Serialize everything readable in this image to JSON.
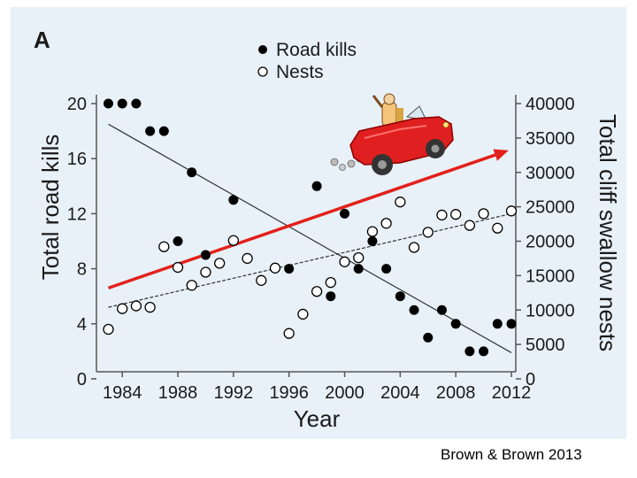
{
  "panel_label": "A",
  "citation": "Brown & Brown 2013",
  "illustration": "car-driver-illustration",
  "chart_data": {
    "type": "scatter",
    "xlabel": "Year",
    "ylabel_left": "Total road kills",
    "ylabel_right": "Total cliff swallow nests",
    "xlim": [
      1982.5,
      2013
    ],
    "ylim_left": [
      0,
      20
    ],
    "ylim_right": [
      0,
      40000
    ],
    "x_ticks": [
      "1984",
      "1988",
      "1992",
      "1996",
      "2000",
      "2004",
      "2008",
      "2012"
    ],
    "y_ticks_left": [
      "0",
      "4",
      "8",
      "12",
      "16",
      "20"
    ],
    "y_ticks_right": [
      "0",
      "5000",
      "10000",
      "15000",
      "20000",
      "25000",
      "30000",
      "35000",
      "40000"
    ],
    "legend": {
      "position": "top-center",
      "entries": [
        "Road kills",
        "Nests"
      ]
    },
    "series": [
      {
        "name": "Road kills",
        "axis": "left",
        "marker": "filled",
        "x": [
          1983,
          1984,
          1985,
          1986,
          1987,
          1988,
          1989,
          1990,
          1992,
          1996,
          1998,
          1999,
          2000,
          2001,
          2002,
          2003,
          2004,
          2005,
          2006,
          2007,
          2008,
          2009,
          2010,
          2011,
          2012
        ],
        "values": [
          20,
          20,
          20,
          18,
          18,
          10,
          15,
          9,
          13,
          8,
          14,
          6,
          12,
          8,
          10,
          8,
          6,
          5,
          3,
          5,
          4,
          2,
          2,
          4,
          4
        ]
      },
      {
        "name": "Nests",
        "axis": "right",
        "marker": "open",
        "x": [
          1983,
          1984,
          1985,
          1986,
          1987,
          1988,
          1989,
          1990,
          1991,
          1992,
          1993,
          1994,
          1995,
          1996,
          1997,
          1998,
          1999,
          2000,
          2001,
          2002,
          2003,
          2004,
          2005,
          2006,
          2007,
          2008,
          2009,
          2010,
          2011,
          2012
        ],
        "values": [
          7200,
          10200,
          10600,
          10400,
          19200,
          16200,
          13600,
          15500,
          16800,
          20100,
          17500,
          14300,
          16100,
          6600,
          9400,
          12700,
          14000,
          17000,
          17600,
          21400,
          22600,
          25700,
          19100,
          21300,
          23800,
          23900,
          22300,
          24000,
          21900,
          24400
        ]
      }
    ],
    "trendlines": [
      {
        "name": "Road kills trend",
        "axis": "left",
        "style": "solid",
        "x": [
          1983,
          2012
        ],
        "values": [
          18.5,
          1.9
        ]
      },
      {
        "name": "Nests trend",
        "axis": "right",
        "style": "dashed",
        "x": [
          1983,
          2012
        ],
        "values": [
          10400,
          24000
        ]
      }
    ],
    "annotation_arrow": {
      "color": "#e3201b",
      "x": [
        1983,
        2011.8
      ],
      "values_left": [
        6.6,
        16.6
      ]
    }
  }
}
